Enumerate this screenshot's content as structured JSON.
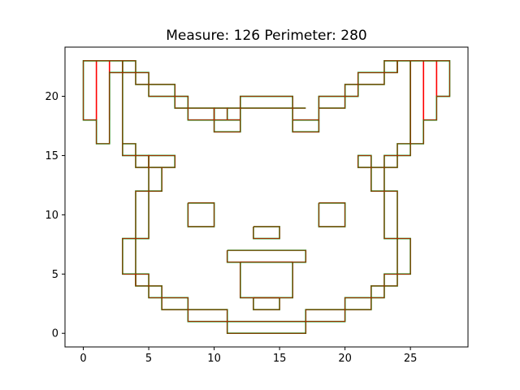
{
  "chart_data": {
    "type": "line",
    "title": "Measure: 126 Perimeter: 280",
    "xlabel": "",
    "ylabel": "",
    "xlim": [
      -1.4,
      29.4
    ],
    "ylim": [
      -1.15,
      24.15
    ],
    "xticks": [
      0,
      5,
      10,
      15,
      20,
      25
    ],
    "yticks": [
      0,
      5,
      10,
      15,
      20
    ],
    "grid": false,
    "colors": {
      "outline": "#008000",
      "outline_overlay": "#ff0000",
      "axes": "#000000"
    },
    "series": [
      {
        "values": [
          [
            0,
            20
          ],
          [
            0,
            23
          ],
          [
            3,
            23
          ],
          [
            3,
            22
          ],
          [
            2,
            22
          ],
          [
            2,
            16
          ],
          [
            1,
            16
          ],
          [
            1,
            18
          ],
          [
            0,
            18
          ],
          [
            0,
            20
          ]
        ]
      },
      {
        "values": [
          [
            3,
            23
          ],
          [
            4,
            23
          ],
          [
            4,
            22
          ],
          [
            5,
            22
          ],
          [
            5,
            21
          ],
          [
            7,
            21
          ],
          [
            7,
            20
          ],
          [
            8,
            20
          ],
          [
            8,
            19
          ],
          [
            10,
            19
          ],
          [
            10,
            18
          ],
          [
            8,
            18
          ],
          [
            8,
            19
          ],
          [
            7,
            19
          ],
          [
            7,
            20
          ],
          [
            5,
            20
          ],
          [
            5,
            21
          ],
          [
            4,
            21
          ],
          [
            4,
            22
          ],
          [
            3,
            22
          ]
        ]
      },
      {
        "values": [
          [
            3,
            22
          ],
          [
            3,
            15
          ],
          [
            4,
            15
          ],
          [
            4,
            14
          ],
          [
            5,
            14
          ],
          [
            5,
            15
          ],
          [
            4,
            15
          ],
          [
            4,
            16
          ],
          [
            3,
            16
          ]
        ]
      },
      {
        "values": [
          [
            5,
            14
          ],
          [
            5,
            12
          ],
          [
            6,
            12
          ],
          [
            6,
            14
          ],
          [
            5,
            14
          ],
          [
            5,
            15
          ],
          [
            7,
            15
          ],
          [
            7,
            14
          ],
          [
            6,
            14
          ]
        ]
      },
      {
        "values": [
          [
            5,
            12
          ],
          [
            4,
            12
          ],
          [
            4,
            8
          ],
          [
            5,
            8
          ],
          [
            5,
            12
          ]
        ]
      },
      {
        "values": [
          [
            4,
            8
          ],
          [
            3,
            8
          ],
          [
            3,
            5
          ],
          [
            4,
            5
          ],
          [
            4,
            4
          ],
          [
            5,
            4
          ],
          [
            5,
            3
          ],
          [
            6,
            3
          ],
          [
            6,
            2
          ],
          [
            8,
            2
          ],
          [
            8,
            1
          ],
          [
            11,
            1
          ],
          [
            11,
            0
          ],
          [
            17,
            0
          ],
          [
            17,
            1
          ],
          [
            20,
            1
          ],
          [
            20,
            2
          ],
          [
            22,
            2
          ],
          [
            22,
            3
          ],
          [
            23,
            3
          ],
          [
            23,
            4
          ],
          [
            24,
            4
          ],
          [
            24,
            5
          ],
          [
            25,
            5
          ],
          [
            25,
            8
          ],
          [
            24,
            8
          ]
        ]
      },
      {
        "values": [
          [
            4,
            5
          ],
          [
            4,
            8
          ]
        ]
      },
      {
        "values": [
          [
            4,
            4
          ],
          [
            4,
            5
          ],
          [
            5,
            5
          ],
          [
            5,
            4
          ],
          [
            6,
            4
          ],
          [
            6,
            3
          ],
          [
            8,
            3
          ],
          [
            8,
            2
          ],
          [
            11,
            2
          ],
          [
            11,
            1
          ],
          [
            17,
            1
          ],
          [
            17,
            2
          ],
          [
            20,
            2
          ],
          [
            20,
            3
          ],
          [
            22,
            3
          ],
          [
            22,
            4
          ],
          [
            23,
            4
          ],
          [
            23,
            5
          ],
          [
            24,
            5
          ],
          [
            24,
            8
          ]
        ]
      },
      {
        "values": [
          [
            10,
            19
          ],
          [
            10,
            18
          ],
          [
            12,
            18
          ],
          [
            12,
            19
          ],
          [
            16,
            19
          ],
          [
            16,
            18
          ],
          [
            18,
            18
          ],
          [
            18,
            19
          ],
          [
            20,
            19
          ],
          [
            20,
            20
          ],
          [
            21,
            20
          ],
          [
            21,
            21
          ],
          [
            23,
            21
          ],
          [
            23,
            22
          ],
          [
            24,
            22
          ],
          [
            24,
            23
          ],
          [
            25,
            23
          ]
        ]
      },
      {
        "values": [
          [
            10,
            19
          ],
          [
            11,
            19
          ],
          [
            11,
            18
          ],
          [
            12,
            18
          ],
          [
            12,
            17
          ],
          [
            10,
            17
          ],
          [
            10,
            18
          ]
        ]
      },
      {
        "values": [
          [
            11,
            19
          ],
          [
            12,
            19
          ],
          [
            12,
            20
          ],
          [
            16,
            20
          ],
          [
            16,
            19
          ],
          [
            17,
            19
          ]
        ]
      },
      {
        "values": [
          [
            16,
            18
          ],
          [
            16,
            17
          ],
          [
            18,
            17
          ],
          [
            18,
            18
          ]
        ]
      },
      {
        "values": [
          [
            18,
            19
          ],
          [
            18,
            20
          ],
          [
            20,
            20
          ],
          [
            20,
            21
          ],
          [
            21,
            21
          ],
          [
            21,
            22
          ],
          [
            23,
            22
          ],
          [
            23,
            23
          ],
          [
            24,
            23
          ],
          [
            24,
            22
          ]
        ]
      },
      {
        "values": [
          [
            25,
            23
          ],
          [
            28,
            23
          ],
          [
            28,
            20
          ],
          [
            27,
            20
          ],
          [
            27,
            18
          ],
          [
            26,
            18
          ],
          [
            26,
            16
          ],
          [
            25,
            16
          ],
          [
            25,
            23
          ]
        ]
      },
      {
        "values": [
          [
            25,
            16
          ],
          [
            25,
            15
          ],
          [
            24,
            15
          ],
          [
            24,
            14
          ],
          [
            23,
            14
          ],
          [
            23,
            15
          ],
          [
            24,
            15
          ],
          [
            24,
            16
          ],
          [
            25,
            16
          ]
        ]
      },
      {
        "values": [
          [
            23,
            14
          ],
          [
            22,
            14
          ],
          [
            22,
            15
          ],
          [
            21,
            15
          ],
          [
            21,
            14
          ],
          [
            22,
            14
          ],
          [
            22,
            12
          ],
          [
            23,
            12
          ],
          [
            23,
            14
          ]
        ]
      },
      {
        "values": [
          [
            23,
            12
          ],
          [
            24,
            12
          ],
          [
            24,
            8
          ],
          [
            23,
            8
          ],
          [
            23,
            12
          ]
        ]
      },
      {
        "values": [
          [
            8,
            11
          ],
          [
            10,
            11
          ],
          [
            10,
            9
          ],
          [
            8,
            9
          ],
          [
            8,
            11
          ]
        ]
      },
      {
        "values": [
          [
            18,
            11
          ],
          [
            20,
            11
          ],
          [
            20,
            9
          ],
          [
            18,
            9
          ],
          [
            18,
            11
          ]
        ]
      },
      {
        "values": [
          [
            13,
            9
          ],
          [
            15,
            9
          ],
          [
            15,
            8
          ],
          [
            13,
            8
          ],
          [
            13,
            9
          ]
        ]
      },
      {
        "values": [
          [
            11,
            7
          ],
          [
            17,
            7
          ],
          [
            17,
            6
          ],
          [
            16,
            6
          ],
          [
            16,
            3
          ],
          [
            15,
            3
          ],
          [
            15,
            2
          ],
          [
            13,
            2
          ],
          [
            13,
            3
          ],
          [
            12,
            3
          ],
          [
            12,
            6
          ],
          [
            11,
            6
          ],
          [
            11,
            7
          ]
        ]
      },
      {
        "values": [
          [
            12,
            6
          ],
          [
            16,
            6
          ]
        ]
      },
      {
        "values": [
          [
            13,
            3
          ],
          [
            15,
            3
          ]
        ]
      }
    ],
    "red_overlay": [
      {
        "values": [
          [
            1,
            23
          ],
          [
            1,
            18
          ]
        ]
      },
      {
        "values": [
          [
            2,
            23
          ],
          [
            2,
            18
          ]
        ]
      },
      {
        "values": [
          [
            3,
            23
          ],
          [
            3,
            22
          ]
        ]
      },
      {
        "values": [
          [
            26,
            23
          ],
          [
            26,
            18
          ]
        ]
      },
      {
        "values": [
          [
            27,
            23
          ],
          [
            27,
            20
          ]
        ]
      },
      {
        "values": [
          [
            25,
            23
          ],
          [
            25,
            16
          ]
        ]
      },
      {
        "values": [
          [
            12,
            6
          ],
          [
            16,
            6
          ]
        ]
      },
      {
        "values": [
          [
            13,
            3
          ],
          [
            15,
            3
          ]
        ]
      }
    ]
  }
}
